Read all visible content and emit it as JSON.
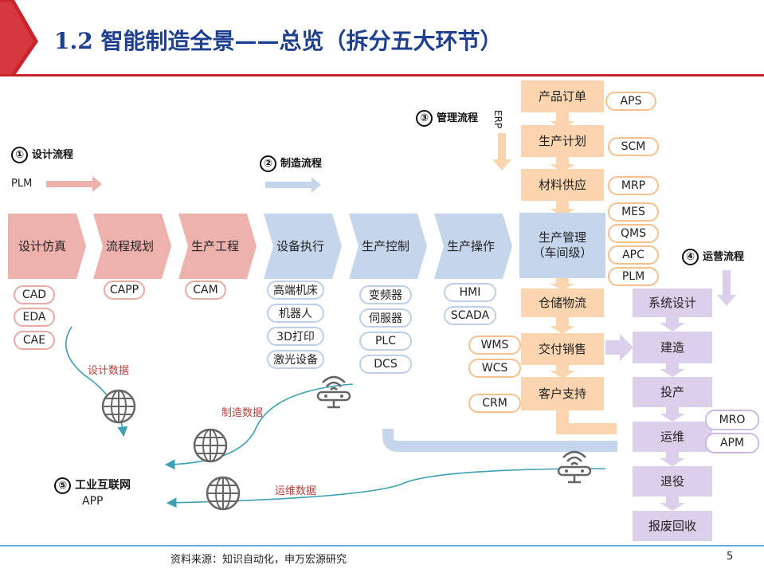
{
  "title": "1.2 智能制造全景——总览（拆分五大环节）",
  "sections": {
    "design": {
      "num": "①",
      "label": "设计流程",
      "source": "PLM"
    },
    "manufacturing": {
      "num": "②",
      "label": "制造流程"
    },
    "management": {
      "num": "③",
      "label": "管理流程",
      "source": "ERP"
    },
    "operations": {
      "num": "④",
      "label": "运营流程"
    },
    "internet": {
      "num": "⑤",
      "label": "工业互联网",
      "sub": "APP"
    }
  },
  "main_flow": [
    {
      "label": "设计仿真",
      "tools": [
        "CAD",
        "EDA",
        "CAE"
      ]
    },
    {
      "label": "流程规划",
      "tools": [
        "CAPP"
      ]
    },
    {
      "label": "生产工程",
      "tools": [
        "CAM"
      ]
    },
    {
      "label": "设备执行",
      "tools": [
        "高端机床",
        "机器人",
        "3D打印",
        "激光设备"
      ]
    },
    {
      "label": "生产控制",
      "tools": [
        "变频器",
        "伺服器",
        "PLC",
        "DCS"
      ]
    },
    {
      "label": "生产操作",
      "tools": [
        "HMI",
        "SCADA"
      ]
    }
  ],
  "management_flow": [
    {
      "label": "产品订单",
      "tools": [
        "APS"
      ]
    },
    {
      "label": "生产计划",
      "tools": [
        "SCM"
      ]
    },
    {
      "label": "材料供应",
      "tools": [
        "MRP"
      ]
    },
    {
      "label": "生产管理\n（车间级）",
      "tools": [
        "MES",
        "QMS",
        "APC",
        "PLM"
      ]
    },
    {
      "label": "仓储物流",
      "tools": []
    },
    {
      "label": "交付销售",
      "tools": [
        "WMS",
        "WCS"
      ]
    },
    {
      "label": "客户支持",
      "tools": [
        "CRM"
      ]
    }
  ],
  "operations_flow": [
    {
      "label": "系统设计"
    },
    {
      "label": "建造"
    },
    {
      "label": "投产"
    },
    {
      "label": "运维",
      "tools": [
        "MRO",
        "APM"
      ]
    },
    {
      "label": "退役"
    },
    {
      "label": "报废回收"
    }
  ],
  "data_labels": {
    "design": "设计数据",
    "manufacturing": "制造数据",
    "operations": "运维数据"
  },
  "footer": "资料来源：知识自动化，申万宏源研究",
  "page_number": "5",
  "colors": {
    "title": "#1f3f8f",
    "accent_red": "#c9242b",
    "design": "#eeb2ad",
    "manufacturing": "#c4d5ec",
    "management": "#fbd5b0",
    "operations": "#dccfeb",
    "data_line": "#3f9fb3",
    "footer_line": "#4a9fd6"
  },
  "icons": [
    "globe-icon",
    "wifi-router-icon"
  ]
}
